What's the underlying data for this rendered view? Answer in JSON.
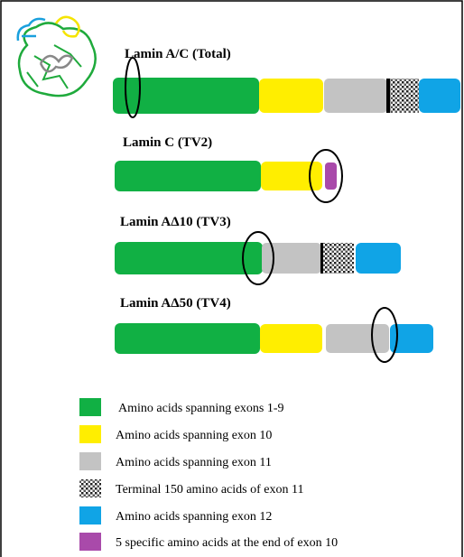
{
  "isoforms": [
    {
      "label": "Lamin A/C  (Total)"
    },
    {
      "label": "Lamin C (TV2)"
    },
    {
      "label": "Lamin AΔ10 (TV3)"
    },
    {
      "label": "Lamin AΔ50 (TV4)"
    }
  ],
  "legend": [
    {
      "label": "Amino acids spanning exons 1-9"
    },
    {
      "label": "Amino acids spanning exon 10"
    },
    {
      "label": "Amino acids spanning exon 11"
    },
    {
      "label": "Terminal 150 amino acids of exon 11"
    },
    {
      "label": "Amino acids spanning exon 12"
    },
    {
      "label": "5 specific amino acids at the end of exon 10"
    }
  ]
}
